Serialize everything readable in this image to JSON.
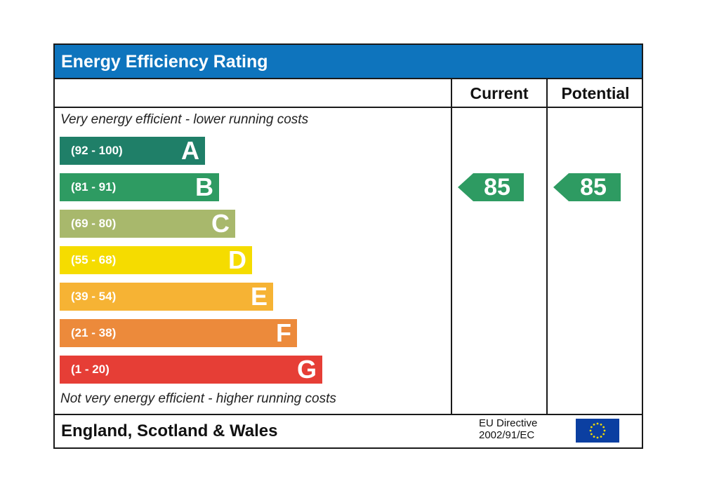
{
  "title": "Energy Efficiency Rating",
  "columns": {
    "current": "Current",
    "potential": "Potential"
  },
  "top_caption": "Very energy efficient - lower running costs",
  "bottom_caption": "Not very energy efficient - higher running costs",
  "chart_data": {
    "type": "bar",
    "categories": [
      "A",
      "B",
      "C",
      "D",
      "E",
      "F",
      "G"
    ],
    "ranges": [
      "(92 - 100)",
      "(81 - 91)",
      "(69 - 80)",
      "(55 - 68)",
      "(39 - 54)",
      "(21 - 38)",
      "(1 - 20)"
    ],
    "colors": [
      "#1f7f68",
      "#2e9b62",
      "#a8b86c",
      "#f5dc00",
      "#f6b334",
      "#ec8a3b",
      "#e63e36"
    ],
    "current": 85,
    "potential": 85,
    "rating_color": "#2e9b62"
  },
  "footer": {
    "region": "England, Scotland & Wales",
    "directive_line1": "EU Directive",
    "directive_line2": "2002/91/EC",
    "flag_color": "#0b3fa1",
    "star_color": "#f5dc00"
  }
}
